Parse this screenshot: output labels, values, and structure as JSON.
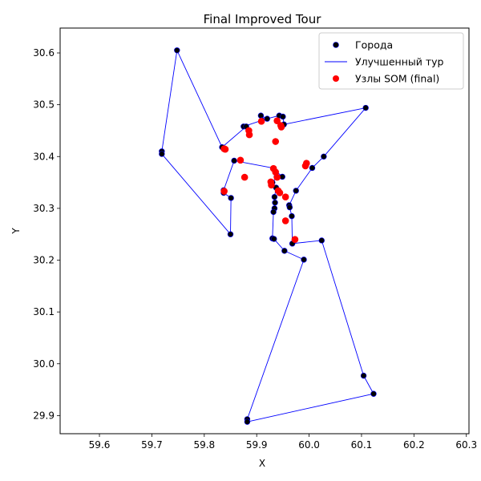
{
  "chart_data": {
    "type": "scatter",
    "title": "Final Improved Tour",
    "xlabel": "X",
    "ylabel": "Y",
    "xlim": [
      59.525,
      60.305
    ],
    "ylim": [
      29.865,
      30.648
    ],
    "grid": false,
    "legend_position": "top-right",
    "x_ticks": [
      "59.6",
      "59.7",
      "59.8",
      "59.9",
      "60.0",
      "60.1",
      "60.2",
      "60.3"
    ],
    "y_ticks": [
      "29.9",
      "30.0",
      "30.1",
      "30.2",
      "30.3",
      "30.4",
      "30.5",
      "30.6"
    ],
    "series": [
      {
        "name": "Города",
        "kind": "scatter",
        "color": "#000000",
        "edge": "#0000ff",
        "points": [
          [
            59.748,
            30.605
          ],
          [
            59.719,
            30.41
          ],
          [
            59.719,
            30.405
          ],
          [
            59.834,
            30.418
          ],
          [
            59.857,
            30.392
          ],
          [
            59.837,
            30.335
          ],
          [
            59.837,
            30.33
          ],
          [
            59.851,
            30.32
          ],
          [
            59.85,
            30.25
          ],
          [
            59.875,
            30.458
          ],
          [
            59.88,
            30.458
          ],
          [
            59.908,
            30.479
          ],
          [
            59.91,
            30.47
          ],
          [
            59.92,
            30.473
          ],
          [
            59.943,
            30.479
          ],
          [
            59.95,
            30.477
          ],
          [
            59.952,
            30.462
          ],
          [
            60.108,
            30.494
          ],
          [
            60.028,
            30.4
          ],
          [
            60.006,
            30.378
          ],
          [
            59.949,
            30.361
          ],
          [
            59.938,
            30.361
          ],
          [
            59.93,
            30.35
          ],
          [
            59.937,
            30.34
          ],
          [
            59.975,
            30.334
          ],
          [
            59.934,
            30.322
          ],
          [
            59.935,
            30.311
          ],
          [
            59.934,
            30.3
          ],
          [
            59.932,
            30.293
          ],
          [
            59.962,
            30.306
          ],
          [
            59.963,
            30.302
          ],
          [
            59.967,
            30.285
          ],
          [
            59.968,
            30.232
          ],
          [
            59.93,
            30.242
          ],
          [
            59.933,
            30.241
          ],
          [
            59.953,
            30.218
          ],
          [
            60.024,
            30.238
          ],
          [
            59.99,
            30.201
          ],
          [
            60.104,
            29.977
          ],
          [
            60.123,
            29.942
          ],
          [
            59.882,
            29.893
          ],
          [
            59.882,
            29.888
          ]
        ]
      },
      {
        "name": "Улучшенный тур",
        "kind": "line",
        "color": "#0000ff",
        "points": [
          [
            59.748,
            30.605
          ],
          [
            59.834,
            30.418
          ],
          [
            59.88,
            30.458
          ],
          [
            59.875,
            30.458
          ],
          [
            59.91,
            30.47
          ],
          [
            59.908,
            30.479
          ],
          [
            59.92,
            30.473
          ],
          [
            59.943,
            30.479
          ],
          [
            59.95,
            30.477
          ],
          [
            59.952,
            30.462
          ],
          [
            60.108,
            30.494
          ],
          [
            60.028,
            30.4
          ],
          [
            60.006,
            30.378
          ],
          [
            59.975,
            30.334
          ],
          [
            59.962,
            30.306
          ],
          [
            59.963,
            30.302
          ],
          [
            59.967,
            30.285
          ],
          [
            59.968,
            30.232
          ],
          [
            60.024,
            30.238
          ],
          [
            60.104,
            29.977
          ],
          [
            60.123,
            29.942
          ],
          [
            59.882,
            29.888
          ],
          [
            59.882,
            29.893
          ],
          [
            59.99,
            30.201
          ],
          [
            59.953,
            30.218
          ],
          [
            59.933,
            30.241
          ],
          [
            59.93,
            30.242
          ],
          [
            59.932,
            30.293
          ],
          [
            59.934,
            30.3
          ],
          [
            59.935,
            30.311
          ],
          [
            59.934,
            30.322
          ],
          [
            59.937,
            30.34
          ],
          [
            59.93,
            30.35
          ],
          [
            59.938,
            30.361
          ],
          [
            59.949,
            30.361
          ],
          [
            59.93,
            30.378
          ],
          [
            59.857,
            30.392
          ],
          [
            59.837,
            30.335
          ],
          [
            59.837,
            30.33
          ],
          [
            59.851,
            30.32
          ],
          [
            59.85,
            30.25
          ],
          [
            59.719,
            30.405
          ],
          [
            59.719,
            30.41
          ],
          [
            59.748,
            30.605
          ]
        ]
      },
      {
        "name": "Узлы SOM (final)",
        "kind": "scatter",
        "color": "#ff0000",
        "points": [
          [
            59.838,
            30.415
          ],
          [
            59.84,
            30.414
          ],
          [
            59.869,
            30.393
          ],
          [
            59.877,
            30.36
          ],
          [
            59.838,
            30.333
          ],
          [
            59.886,
            30.442
          ],
          [
            59.885,
            30.45
          ],
          [
            59.909,
            30.468
          ],
          [
            59.939,
            30.469
          ],
          [
            59.947,
            30.457
          ],
          [
            59.946,
            30.46
          ],
          [
            59.936,
            30.429
          ],
          [
            59.995,
            30.387
          ],
          [
            59.993,
            30.382
          ],
          [
            59.932,
            30.377
          ],
          [
            59.936,
            30.37
          ],
          [
            59.939,
            30.36
          ],
          [
            59.927,
            30.351
          ],
          [
            59.928,
            30.345
          ],
          [
            59.941,
            30.334
          ],
          [
            59.944,
            30.33
          ],
          [
            59.955,
            30.322
          ],
          [
            59.955,
            30.276
          ],
          [
            59.973,
            30.24
          ]
        ]
      }
    ]
  }
}
